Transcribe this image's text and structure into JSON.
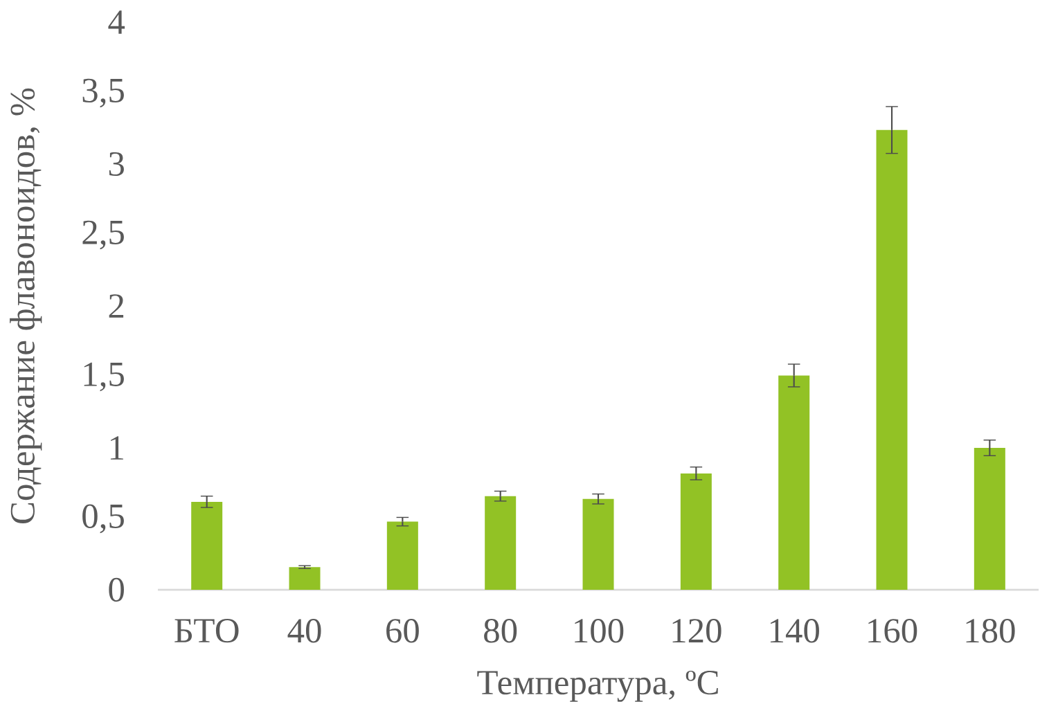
{
  "chart_data": {
    "type": "bar",
    "xlabel": "Температура, ºC",
    "ylabel": "Содержание флавоноидов, %",
    "categories": [
      "БТО",
      "40",
      "60",
      "80",
      "100",
      "120",
      "140",
      "160",
      "180"
    ],
    "values": [
      0.62,
      0.16,
      0.48,
      0.66,
      0.64,
      0.82,
      1.51,
      3.24,
      1.0
    ],
    "errors": [
      0.04,
      0.01,
      0.03,
      0.035,
      0.035,
      0.045,
      0.08,
      0.165,
      0.055
    ],
    "color": "#92c225",
    "ylim": [
      0,
      4
    ],
    "yticks": [
      0,
      {
        "value": 0.5,
        "label": "0,5"
      },
      1,
      {
        "value": 1.5,
        "label": "1,5"
      },
      2,
      {
        "value": 2.5,
        "label": "2,5"
      },
      3,
      {
        "value": 3.5,
        "label": "3,5"
      },
      4
    ]
  }
}
